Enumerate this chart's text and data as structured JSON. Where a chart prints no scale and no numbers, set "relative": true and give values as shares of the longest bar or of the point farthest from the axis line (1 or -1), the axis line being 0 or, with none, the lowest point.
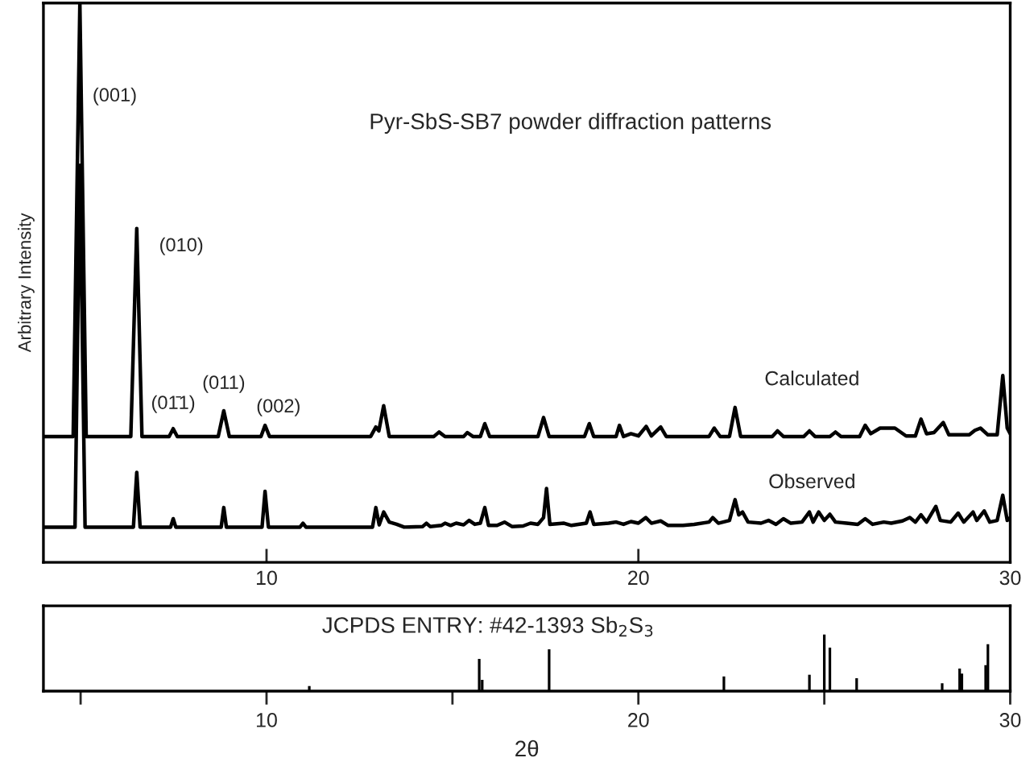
{
  "chart_data": [
    {
      "type": "line",
      "relative": true,
      "title": "Pyr-SbS-SB7 powder diffraction patterns",
      "ylabel": "Arbitrary Intensity",
      "xlim": [
        4,
        30
      ],
      "xticks": [
        10,
        20,
        30
      ],
      "annotations": [
        {
          "text": "(001)",
          "x": 5.02,
          "y": 0.833
        },
        {
          "text": "(010)",
          "x": 6.51,
          "y": 0.597
        },
        {
          "text": "(01̄1)",
          "x": 7.49,
          "y": 0.239
        },
        {
          "text": "(011)",
          "x": 8.85,
          "y": 0.271
        },
        {
          "text": "(002)",
          "x": 9.96,
          "y": 0.245
        }
      ],
      "series": [
        {
          "name": "Calculated",
          "color": "#000000",
          "x": [
            4.0,
            4.8,
            4.98,
            5.15,
            6.35,
            6.51,
            6.65,
            7.38,
            7.49,
            7.6,
            8.7,
            8.85,
            9.0,
            9.85,
            9.96,
            10.08,
            12.8,
            12.94,
            13.02,
            13.15,
            13.3,
            14.5,
            14.64,
            14.8,
            15.3,
            15.4,
            15.55,
            15.75,
            15.87,
            16.0,
            17.3,
            17.45,
            17.6,
            18.55,
            18.68,
            18.8,
            19.4,
            19.49,
            19.6,
            19.8,
            20.0,
            20.21,
            20.35,
            20.6,
            20.75,
            21.9,
            22.04,
            22.2,
            22.45,
            22.6,
            22.75,
            23.6,
            23.74,
            23.9,
            24.45,
            24.6,
            24.75,
            25.15,
            25.3,
            25.45,
            25.95,
            26.1,
            26.25,
            26.5,
            26.9,
            27.2,
            27.45,
            27.6,
            27.75,
            27.95,
            28.2,
            28.35,
            28.9,
            29.05,
            29.2,
            29.4,
            29.65,
            29.8,
            29.92,
            30.0
          ],
          "values": [
            0.225,
            0.225,
            1.0,
            0.225,
            0.225,
            0.597,
            0.225,
            0.225,
            0.239,
            0.225,
            0.225,
            0.271,
            0.225,
            0.225,
            0.245,
            0.225,
            0.225,
            0.242,
            0.235,
            0.28,
            0.225,
            0.225,
            0.233,
            0.225,
            0.225,
            0.232,
            0.225,
            0.225,
            0.248,
            0.225,
            0.225,
            0.259,
            0.225,
            0.225,
            0.248,
            0.225,
            0.225,
            0.245,
            0.225,
            0.23,
            0.226,
            0.243,
            0.226,
            0.242,
            0.225,
            0.225,
            0.24,
            0.225,
            0.225,
            0.277,
            0.225,
            0.225,
            0.235,
            0.225,
            0.225,
            0.235,
            0.225,
            0.225,
            0.233,
            0.225,
            0.225,
            0.245,
            0.23,
            0.24,
            0.24,
            0.226,
            0.226,
            0.256,
            0.23,
            0.232,
            0.25,
            0.228,
            0.228,
            0.236,
            0.24,
            0.228,
            0.228,
            0.334,
            0.24,
            0.23
          ]
        },
        {
          "name": "Observed",
          "color": "#000000",
          "x": [
            4.0,
            4.85,
            4.98,
            5.12,
            6.42,
            6.51,
            6.6,
            7.42,
            7.49,
            7.56,
            8.78,
            8.85,
            8.92,
            9.88,
            9.96,
            10.05,
            10.9,
            10.98,
            11.06,
            12.85,
            12.94,
            13.03,
            13.15,
            13.3,
            13.5,
            13.7,
            14.2,
            14.3,
            14.4,
            14.7,
            14.8,
            14.95,
            15.1,
            15.3,
            15.45,
            15.6,
            15.75,
            15.87,
            15.97,
            16.2,
            16.4,
            16.6,
            16.9,
            17.1,
            17.3,
            17.45,
            17.53,
            17.62,
            18.0,
            18.2,
            18.6,
            18.7,
            18.8,
            19.2,
            19.4,
            19.6,
            19.8,
            20.0,
            20.2,
            20.35,
            20.6,
            20.8,
            21.2,
            21.5,
            21.9,
            22.0,
            22.15,
            22.45,
            22.6,
            22.7,
            22.8,
            22.95,
            23.3,
            23.5,
            23.7,
            23.9,
            24.1,
            24.4,
            24.6,
            24.7,
            24.85,
            25.0,
            25.15,
            25.3,
            25.6,
            25.9,
            26.1,
            26.3,
            26.6,
            26.8,
            27.1,
            27.3,
            27.45,
            27.6,
            27.75,
            28.0,
            28.12,
            28.4,
            28.6,
            28.75,
            29.0,
            29.1,
            29.3,
            29.45,
            29.65,
            29.8,
            29.92,
            30.0
          ],
          "values": [
            0.063,
            0.063,
            0.71,
            0.063,
            0.063,
            0.161,
            0.063,
            0.063,
            0.078,
            0.063,
            0.063,
            0.098,
            0.063,
            0.063,
            0.127,
            0.063,
            0.063,
            0.07,
            0.063,
            0.063,
            0.098,
            0.067,
            0.09,
            0.072,
            0.068,
            0.063,
            0.064,
            0.07,
            0.064,
            0.066,
            0.07,
            0.066,
            0.07,
            0.067,
            0.075,
            0.068,
            0.07,
            0.098,
            0.066,
            0.066,
            0.072,
            0.064,
            0.065,
            0.07,
            0.068,
            0.08,
            0.132,
            0.068,
            0.07,
            0.066,
            0.07,
            0.09,
            0.068,
            0.07,
            0.072,
            0.068,
            0.073,
            0.07,
            0.08,
            0.07,
            0.074,
            0.066,
            0.066,
            0.068,
            0.072,
            0.08,
            0.07,
            0.075,
            0.112,
            0.085,
            0.09,
            0.072,
            0.07,
            0.075,
            0.068,
            0.078,
            0.07,
            0.072,
            0.09,
            0.072,
            0.09,
            0.075,
            0.086,
            0.072,
            0.07,
            0.068,
            0.078,
            0.068,
            0.072,
            0.07,
            0.074,
            0.08,
            0.072,
            0.085,
            0.072,
            0.1,
            0.075,
            0.072,
            0.088,
            0.072,
            0.09,
            0.075,
            0.092,
            0.072,
            0.075,
            0.12,
            0.075,
            0.08
          ]
        }
      ]
    },
    {
      "type": "bar",
      "relative": true,
      "color": "#000000",
      "xlabel": "2θ",
      "xlim": [
        4,
        30
      ],
      "xticks": [
        {
          "value": 5,
          "label": null
        },
        10,
        {
          "value": 15,
          "label": null
        },
        20,
        {
          "value": 25,
          "label": null
        },
        30
      ],
      "annotations": [
        "JCPDS ENTRY: #42-1393 Sb$_{2}$S$_{3}$"
      ],
      "x": [
        11.15,
        15.72,
        15.8,
        17.6,
        22.3,
        24.6,
        25.0,
        25.15,
        25.87,
        28.17,
        28.64,
        28.7,
        29.34,
        29.4
      ],
      "values": [
        0.09,
        0.57,
        0.2,
        0.74,
        0.26,
        0.29,
        1.0,
        0.77,
        0.23,
        0.14,
        0.4,
        0.31,
        0.46,
        0.83
      ]
    }
  ]
}
